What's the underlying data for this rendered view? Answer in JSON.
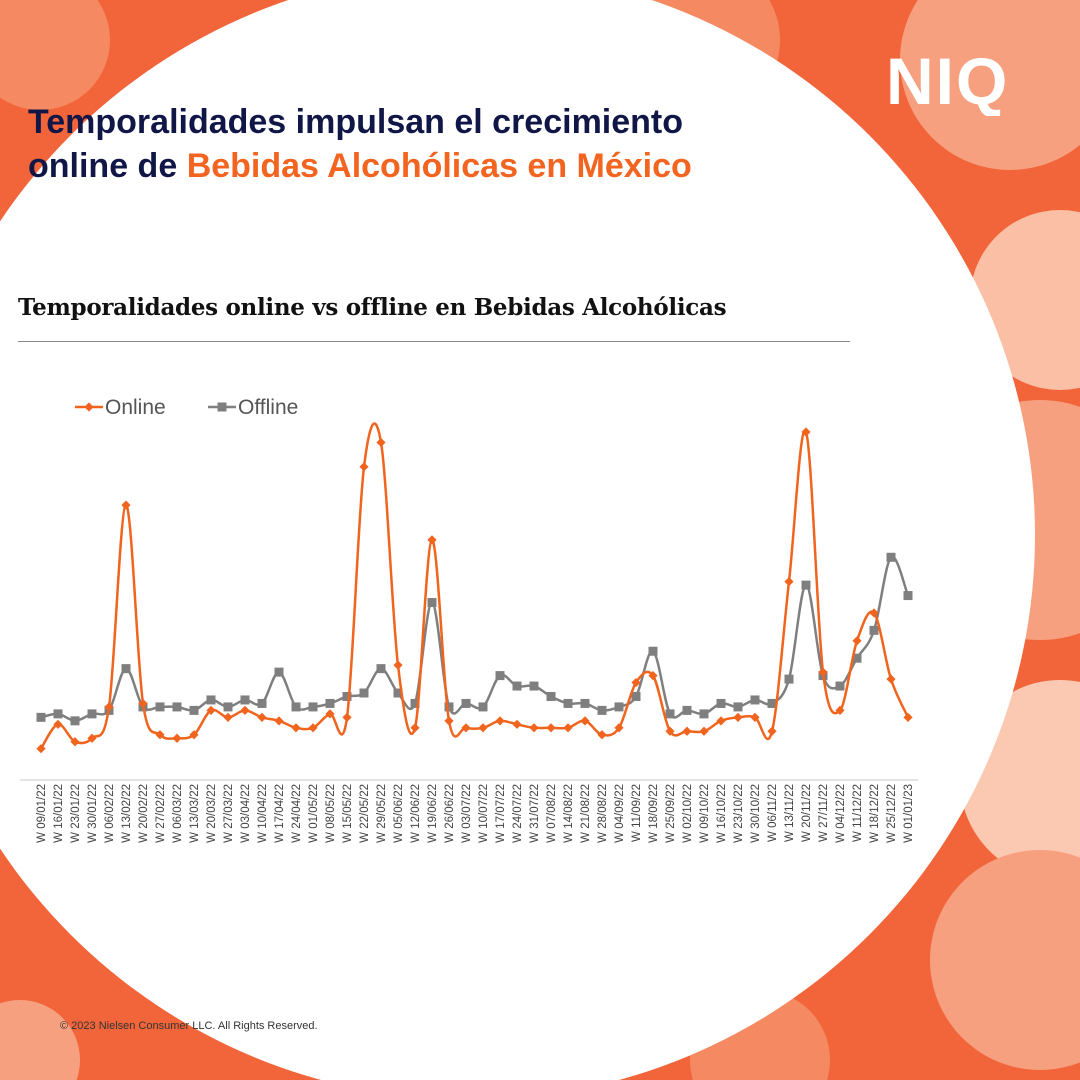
{
  "headline": {
    "line1": "Temporalidades impulsan el crecimiento",
    "line2_prefix": "online de ",
    "line2_accent": "Bebidas Alcohólicas en México"
  },
  "brand": {
    "logo_text": "NIQ"
  },
  "footer": {
    "copyright": "© 2023 Nielsen Consumer LLC. All Rights Reserved."
  },
  "colors": {
    "online": "#f0641e",
    "offline": "#7f7f7f",
    "navy": "#101747",
    "orange": "#f2641f"
  },
  "chart_data": {
    "type": "line",
    "title": "Temporalidades online vs offline en Bebidas Alcohólicas",
    "xlabel": "",
    "ylabel": "",
    "grid": false,
    "legend": "top-left",
    "ylim": [
      0,
      100
    ],
    "categories": [
      "W 09/01/22",
      "W 16/01/22",
      "W 23/01/22",
      "W 30/01/22",
      "W 06/02/22",
      "W 13/02/22",
      "W 20/02/22",
      "W 27/02/22",
      "W 06/03/22",
      "W 13/03/22",
      "W 20/03/22",
      "W 27/03/22",
      "W 03/04/22",
      "W 10/04/22",
      "W 17/04/22",
      "W 24/04/22",
      "W 01/05/22",
      "W 08/05/22",
      "W 15/05/22",
      "W 22/05/22",
      "W 29/05/22",
      "W 05/06/22",
      "W 12/06/22",
      "W 19/06/22",
      "W 26/06/22",
      "W 03/07/22",
      "W 10/07/22",
      "W 17/07/22",
      "W 24/07/22",
      "W 31/07/22",
      "W 07/08/22",
      "W 14/08/22",
      "W 21/08/22",
      "W 28/08/22",
      "W 04/09/22",
      "W 11/09/22",
      "W 18/09/22",
      "W 25/09/22",
      "W 02/10/22",
      "W 09/10/22",
      "W 16/10/22",
      "W 23/10/22",
      "W 30/10/22",
      "W 06/11/22",
      "W 13/11/22",
      "W 20/11/22",
      "W 27/11/22",
      "W 04/12/22",
      "W 11/12/22",
      "W 18/12/22",
      "W 25/12/22",
      "W 01/01/23"
    ],
    "series": [
      {
        "name": "Online",
        "marker": "diamond",
        "values": [
          9,
          16,
          11,
          12,
          21,
          79,
          22,
          13,
          12,
          13,
          20,
          18,
          20,
          18,
          17,
          15,
          15,
          19,
          18,
          90,
          97,
          33,
          15,
          69,
          17,
          15,
          15,
          17,
          16,
          15,
          15,
          15,
          17,
          13,
          15,
          28,
          30,
          14,
          14,
          14,
          17,
          18,
          18,
          14,
          57,
          100,
          31,
          20,
          40,
          48,
          29,
          18
        ]
      },
      {
        "name": "Offline",
        "marker": "square",
        "values": [
          18,
          19,
          17,
          19,
          20,
          32,
          21,
          21,
          21,
          20,
          23,
          21,
          23,
          22,
          31,
          21,
          21,
          22,
          24,
          25,
          32,
          25,
          22,
          51,
          21,
          22,
          21,
          30,
          27,
          27,
          24,
          22,
          22,
          20,
          21,
          24,
          37,
          19,
          20,
          19,
          22,
          21,
          23,
          22,
          29,
          56,
          30,
          27,
          35,
          43,
          64,
          53
        ]
      }
    ]
  }
}
